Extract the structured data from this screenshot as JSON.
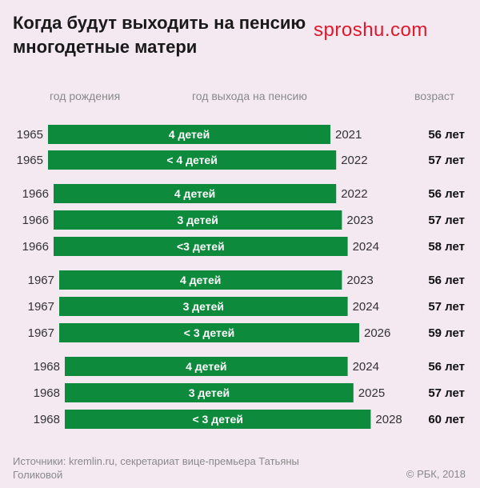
{
  "title": {
    "line1": "Когда будут выходить на пенсию",
    "line2": "многодетные матери"
  },
  "watermark": "sproshu.com",
  "headers": {
    "birth_year": "год рождения",
    "retirement_year": "год выхода на пенсию",
    "age": "возраст"
  },
  "footer": {
    "source": "Источники: kremlin.ru, секретариат вице-премьера Татьяны Голиковой",
    "copyright": "© РБК, 2018"
  },
  "colors": {
    "bar": "#0e8a3c",
    "background": "#f4e8f1"
  },
  "chart_data": {
    "type": "bar",
    "orientation": "horizontal",
    "rows": [
      {
        "birth_year": "1965",
        "label": "4 детей",
        "retire_year": "2021",
        "age": "56 лет"
      },
      {
        "birth_year": "1965",
        "label": "< 4 детей",
        "retire_year": "2022",
        "age": "57 лет"
      },
      {
        "birth_year": "1966",
        "label": "4 детей",
        "retire_year": "2022",
        "age": "56 лет"
      },
      {
        "birth_year": "1966",
        "label": "3 детей",
        "retire_year": "2023",
        "age": "57 лет"
      },
      {
        "birth_year": "1966",
        "label": "<3 детей",
        "retire_year": "2024",
        "age": "58 лет"
      },
      {
        "birth_year": "1967",
        "label": "4 детей",
        "retire_year": "2023",
        "age": "56 лет"
      },
      {
        "birth_year": "1967",
        "label": "3 детей",
        "retire_year": "2024",
        "age": "57 лет"
      },
      {
        "birth_year": "1967",
        "label": "< 3 детей",
        "retire_year": "2026",
        "age": "59 лет"
      },
      {
        "birth_year": "1968",
        "label": "4 детей",
        "retire_year": "2024",
        "age": "56 лет"
      },
      {
        "birth_year": "1968",
        "label": "3 детей",
        "retire_year": "2025",
        "age": "57 лет"
      },
      {
        "birth_year": "1968",
        "label": "< 3 детей",
        "retire_year": "2028",
        "age": "60 лет"
      }
    ]
  }
}
